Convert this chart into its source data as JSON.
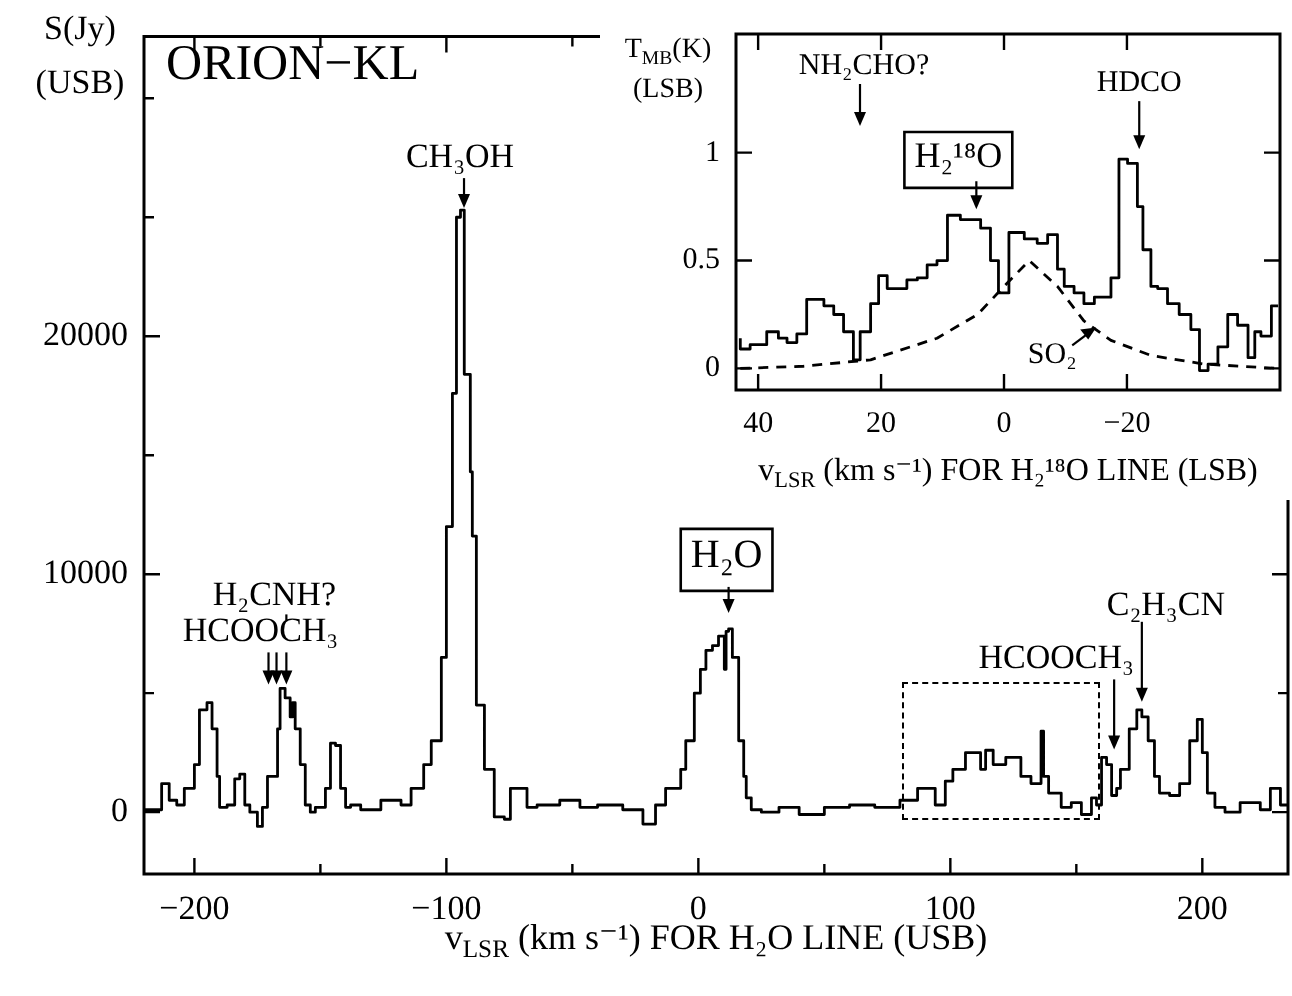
{
  "chart_data": [
    {
      "type": "step",
      "title": "ORION−KL",
      "xlabel": "v$_{LSR}$ (km s⁻¹) FOR H₂O LINE (USB)",
      "ylabel": "S(Jy)\n(USB)",
      "xlim": [
        -220,
        234
      ],
      "ylim": [
        -2600,
        32600
      ],
      "xticks": [
        -200,
        {
          "value": -150,
          "label": null
        },
        -100,
        {
          "value": -50,
          "label": null
        },
        0,
        {
          "value": 50,
          "label": null
        },
        100,
        {
          "value": 150,
          "label": null
        },
        200
      ],
      "yticks": [
        0,
        {
          "value": 5000,
          "label": null
        },
        10000,
        {
          "value": 15000,
          "label": null
        },
        20000,
        {
          "value": 25000,
          "label": null
        },
        {
          "value": 30000,
          "label": null
        }
      ],
      "series": [
        {
          "color": "#000000",
          "x": [
            -220,
            -213,
            -210,
            -207,
            -204,
            -200,
            -198,
            -195,
            -193,
            -191,
            -190,
            -187,
            -184,
            -182,
            -180,
            -178,
            -175,
            -173,
            -171,
            -167,
            -166,
            -164,
            -162,
            -161,
            -160,
            -158,
            -156,
            -154,
            -152,
            -148,
            -146,
            -144,
            -142,
            -140,
            -138,
            -134,
            -126,
            -118,
            -114,
            -109,
            -106,
            -102,
            -100,
            -97.6,
            -96,
            -94.4,
            -92.9,
            -90.5,
            -89.7,
            -88.1,
            -84.9,
            -81,
            -77,
            -74.6,
            -68,
            -64,
            -55,
            -47,
            -40,
            -30,
            -22,
            -17,
            -13,
            -9,
            -7,
            -5,
            -1.6,
            0.8,
            3,
            5.6,
            8,
            10.3,
            11,
            12,
            13.5,
            16,
            18,
            19,
            21,
            25,
            32,
            40,
            50,
            60,
            70,
            80,
            87,
            94,
            98,
            101,
            106,
            112,
            114,
            117,
            122,
            128,
            132,
            136,
            137,
            139,
            144,
            148,
            152,
            156,
            158,
            160,
            162,
            164,
            166,
            167.5,
            171,
            174,
            176,
            178.5,
            181,
            183,
            187,
            191,
            195,
            198,
            200,
            202,
            205,
            209,
            215,
            223,
            227,
            231,
            234
          ],
          "values": [
            0,
            100,
            1200,
            500,
            300,
            1000,
            2000,
            4300,
            4600,
            3500,
            1500,
            200,
            300,
            1400,
            1600,
            300,
            0,
            -600,
            200,
            1500,
            3500,
            5200,
            4800,
            4000,
            4600,
            3500,
            2000,
            300,
            0,
            200,
            1000,
            2900,
            2800,
            1000,
            200,
            300,
            100,
            500,
            300,
            1000,
            2000,
            3000,
            6500,
            12000,
            17600,
            25000,
            25300,
            18400,
            14300,
            11600,
            4500,
            1800,
            -200,
            -300,
            1000,
            200,
            300,
            500,
            200,
            300,
            100,
            -500,
            300,
            1000,
            1000,
            1800,
            3000,
            5000,
            6000,
            6800,
            7000,
            7400,
            6000,
            7600,
            7700,
            6500,
            3000,
            1500,
            600,
            100,
            0,
            200,
            -100,
            200,
            300,
            200,
            500,
            1000,
            300,
            1300,
            1800,
            2500,
            1800,
            2600,
            2000,
            2300,
            1500,
            1200,
            3400,
            1500,
            800,
            200,
            400,
            -100,
            600,
            300,
            2300,
            2000,
            700,
            1000,
            1800,
            3500,
            4300,
            4000,
            3000,
            1500,
            800,
            700,
            1200,
            3000,
            3900,
            2500,
            800,
            200,
            0,
            400,
            100,
            1000,
            300
          ]
        }
      ],
      "annotations": [
        {
          "text": "CH₃OH",
          "x": -93,
          "y": 25300
        },
        {
          "text": "H₂CNH?",
          "x": -163.5,
          "y": 5200
        },
        {
          "text": "HCOOCH₃",
          "x": -169,
          "y": 5200
        },
        {
          "text": "H₂O",
          "x": 12,
          "y": 7700
        },
        {
          "text": "C₂H₃CN",
          "x": 176,
          "y": 4300
        },
        {
          "text": "HCOOCH₃",
          "x": 165,
          "y": 2300
        }
      ],
      "legend": false
    },
    {
      "type": "step",
      "xlabel": "v$_{LSR}$ (km s⁻¹) FOR H₂¹⁸O LINE (LSB)",
      "ylabel": "T$_{MB}$(K)\n(LSB)",
      "xlim": [
        43.6,
        -44.9
      ],
      "ylim": [
        -0.1,
        1.55
      ],
      "xticks": [
        40,
        20,
        0,
        -20
      ],
      "yticks": [
        0,
        0.5,
        1
      ],
      "series": [
        {
          "color": "#000000",
          "x": [
            42.9,
            41.3,
            38.6,
            36.7,
            35.3,
            33.7,
            32.1,
            29.3,
            27.7,
            26.1,
            24.5,
            23.4,
            21.7,
            20.4,
            19.0,
            15.8,
            14.1,
            12.5,
            10.9,
            9.2,
            7.1,
            3.8,
            2.2,
            0.9,
            -0.8,
            -3.3,
            -5.4,
            -7.1,
            -8.7,
            -9.8,
            -11.4,
            -13.0,
            -14.7,
            -17.4,
            -18.7,
            -20.1,
            -21.7,
            -22.6,
            -23.9,
            -25.0,
            -26.6,
            -28.5,
            -30.4,
            -31.8,
            -33.2,
            -34.8,
            -36.4,
            -38.0,
            -39.7,
            -40.8,
            -41.8,
            -43.5,
            -44.6
          ],
          "values": [
            0.14,
            0.09,
            0.11,
            0.17,
            0.14,
            0.12,
            0.16,
            0.32,
            0.29,
            0.25,
            0.17,
            0.04,
            0.17,
            0.3,
            0.43,
            0.37,
            0.41,
            0.42,
            0.48,
            0.5,
            0.71,
            0.69,
            0.65,
            0.5,
            0.35,
            0.63,
            0.6,
            0.58,
            0.62,
            0.46,
            0.38,
            0.35,
            0.3,
            0.33,
            0.42,
            0.97,
            0.95,
            0.75,
            0.55,
            0.38,
            0.37,
            0.3,
            0.25,
            0.18,
            -0.01,
            0.02,
            0.1,
            0.25,
            0.2,
            0.05,
            0.17,
            0.15,
            0.29
          ]
        },
        {
          "type": "line",
          "line_style": "dashed",
          "color": "#000000",
          "x": [
            42.9,
            32.6,
            21.7,
            10.9,
            4.3,
            0,
            -4.1,
            -8.7,
            -13,
            -17.4,
            -23.9,
            -32.6,
            -44.6
          ],
          "values": [
            0,
            0.01,
            0.04,
            0.14,
            0.25,
            0.38,
            0.5,
            0.38,
            0.22,
            0.13,
            0.06,
            0.02,
            0
          ]
        }
      ],
      "annotations": [
        "NH₂CHO?",
        {
          "text": "H₂¹⁸O",
          "x": 4.5,
          "y": 0.71
        },
        {
          "text": "HDCO",
          "x": -22,
          "y": 0.97
        },
        {
          "text": "SO₂",
          "x": -15,
          "y": 0.19
        }
      ]
    }
  ]
}
